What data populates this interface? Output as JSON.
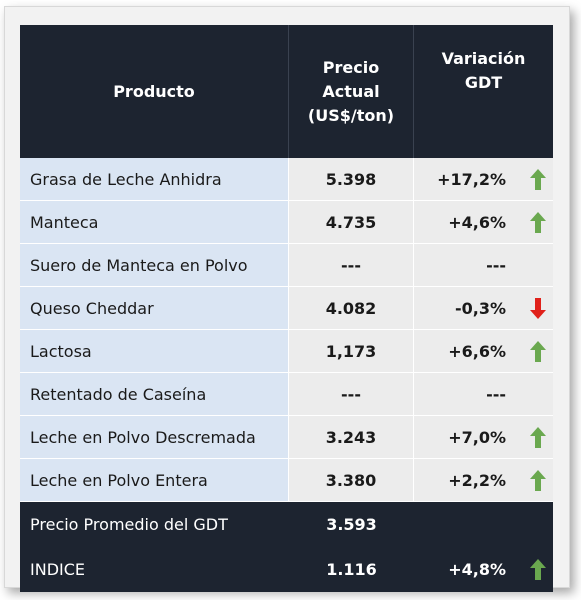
{
  "header": {
    "col1": "Producto",
    "col2": [
      "Precio",
      "Actual",
      "(US$/ton)"
    ],
    "col3": [
      "Variación",
      "GDT"
    ]
  },
  "rows": [
    {
      "name": "Grasa de Leche Anhidra",
      "price": "5.398",
      "var": "+17,2%",
      "dir": "up"
    },
    {
      "name": "Manteca",
      "price": "4.735",
      "var": "+4,6%",
      "dir": "up"
    },
    {
      "name": "Suero de Manteca en Polvo",
      "price": "---",
      "var": "---",
      "dir": ""
    },
    {
      "name": "Queso Cheddar",
      "price": "4.082",
      "var": "-0,3%",
      "dir": "down"
    },
    {
      "name": "Lactosa",
      "price": "1,173",
      "var": "+6,6%",
      "dir": "up"
    },
    {
      "name": "Retentado de Caseína",
      "price": "---",
      "var": "---",
      "dir": ""
    },
    {
      "name": "Leche en Polvo Descremada",
      "price": "3.243",
      "var": "+7,0%",
      "dir": "up"
    },
    {
      "name": "Leche en Polvo Entera",
      "price": "3.380",
      "var": "+2,2%",
      "dir": "up"
    }
  ],
  "summary": [
    {
      "name": "Precio Promedio del GDT",
      "price": "3.593",
      "var": "",
      "dir": ""
    },
    {
      "name": "INDICE",
      "price": "1.116",
      "var": "+4,8%",
      "dir": "up"
    }
  ],
  "colors": {
    "header_bg": "#1d2430",
    "name_bg": "#dae5f3",
    "value_bg": "#ececec",
    "up": "#6aa84f",
    "down": "#e0211a"
  }
}
